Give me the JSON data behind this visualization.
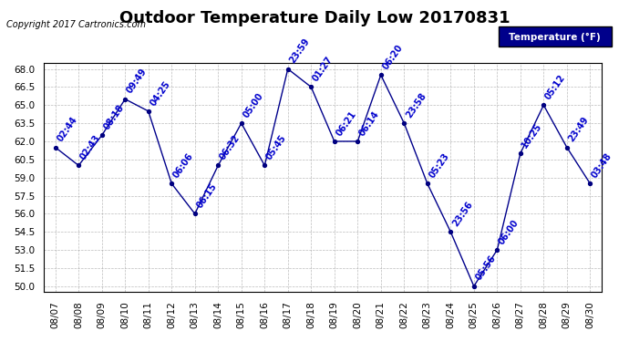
{
  "title": "Outdoor Temperature Daily Low 20170831",
  "copyright": "Copyright 2017 Cartronics.com",
  "legend_label": "Temperature (°F)",
  "dates": [
    "08/07",
    "08/08",
    "08/09",
    "08/10",
    "08/11",
    "08/12",
    "08/13",
    "08/14",
    "08/15",
    "08/16",
    "08/17",
    "08/18",
    "08/19",
    "08/20",
    "08/21",
    "08/22",
    "08/23",
    "08/24",
    "08/25",
    "08/26",
    "08/27",
    "08/28",
    "08/29",
    "08/30"
  ],
  "values": [
    61.5,
    60.0,
    62.5,
    65.5,
    64.5,
    58.5,
    56.0,
    60.0,
    63.5,
    60.0,
    68.0,
    66.5,
    62.0,
    62.0,
    67.5,
    63.5,
    58.5,
    54.5,
    50.0,
    53.0,
    61.0,
    65.0,
    61.5,
    58.5
  ],
  "annotations": [
    "02:44",
    "02:43",
    "08:18",
    "09:49",
    "04:25",
    "06:06",
    "06:15",
    "06:32",
    "05:00",
    "05:45",
    "23:59",
    "01:27",
    "06:21",
    "06:14",
    "06:20",
    "23:58",
    "05:23",
    "23:56",
    "05:56",
    "06:00",
    "10:25",
    "05:12",
    "23:49",
    "03:48"
  ],
  "ylim": [
    49.5,
    68.5
  ],
  "yticks": [
    50.0,
    51.5,
    53.0,
    54.5,
    56.0,
    57.5,
    59.0,
    60.5,
    62.0,
    63.5,
    65.0,
    66.5,
    68.0
  ],
  "line_color": "#00008B",
  "marker_color": "#000080",
  "annotation_color": "#0000CD",
  "bg_color": "#ffffff",
  "plot_bg_color": "#ffffff",
  "grid_color": "#a0a0a0",
  "title_fontsize": 13,
  "label_fontsize": 7.5,
  "annotation_fontsize": 7,
  "legend_bg": "#00008B",
  "legend_text_color": "#ffffff"
}
